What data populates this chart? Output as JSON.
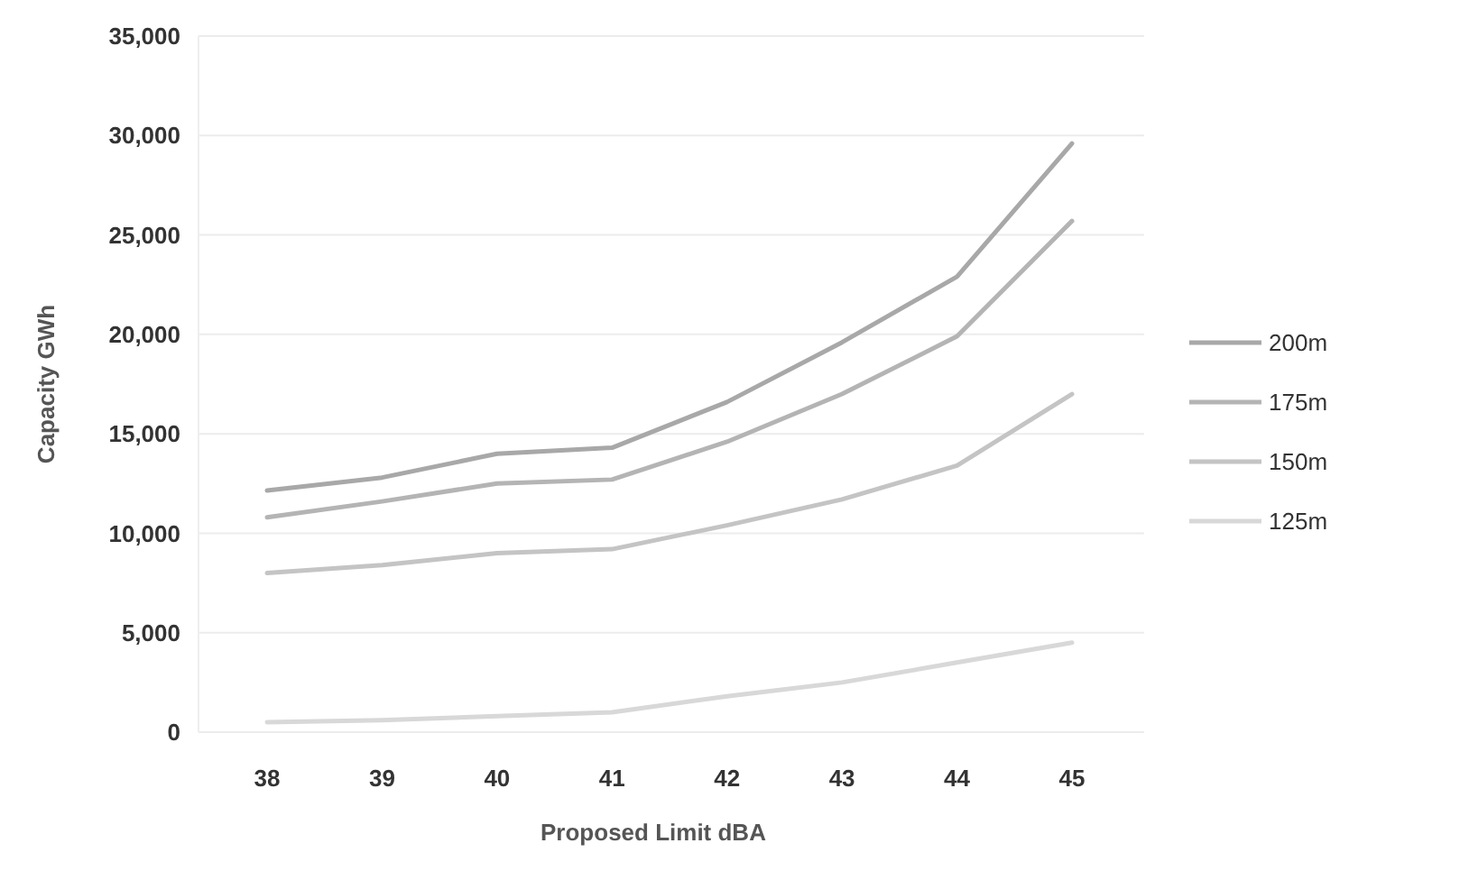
{
  "chart_data": {
    "type": "line",
    "xlabel": "Proposed Limit dBA",
    "ylabel": "Capacity GWh",
    "categories": [
      "38",
      "39",
      "40",
      "41",
      "42",
      "43",
      "44",
      "45"
    ],
    "series": [
      {
        "name": "200m",
        "color": "#a8a8a8",
        "values": [
          12150,
          12800,
          14000,
          14300,
          16600,
          19600,
          22900,
          29600
        ]
      },
      {
        "name": "175m",
        "color": "#b4b4b4",
        "values": [
          10800,
          11600,
          12500,
          12700,
          14600,
          17000,
          19900,
          25700
        ]
      },
      {
        "name": "150m",
        "color": "#c4c4c4",
        "values": [
          8000,
          8400,
          9000,
          9200,
          10400,
          11700,
          13400,
          17000
        ]
      },
      {
        "name": "125m",
        "color": "#d8d8d8",
        "values": [
          500,
          600,
          800,
          1000,
          1800,
          2500,
          3500,
          4500
        ]
      }
    ],
    "ylim": [
      0,
      35000
    ],
    "yticks": [
      {
        "value": 0,
        "label": "0"
      },
      {
        "value": 5000,
        "label": "5,000"
      },
      {
        "value": 10000,
        "label": "10,000"
      },
      {
        "value": 15000,
        "label": "15,000"
      },
      {
        "value": 20000,
        "label": "20,000"
      },
      {
        "value": 25000,
        "label": "25,000"
      },
      {
        "value": 30000,
        "label": "30,000"
      },
      {
        "value": 35000,
        "label": "35,000"
      }
    ],
    "grid": "y",
    "legend": "right"
  }
}
